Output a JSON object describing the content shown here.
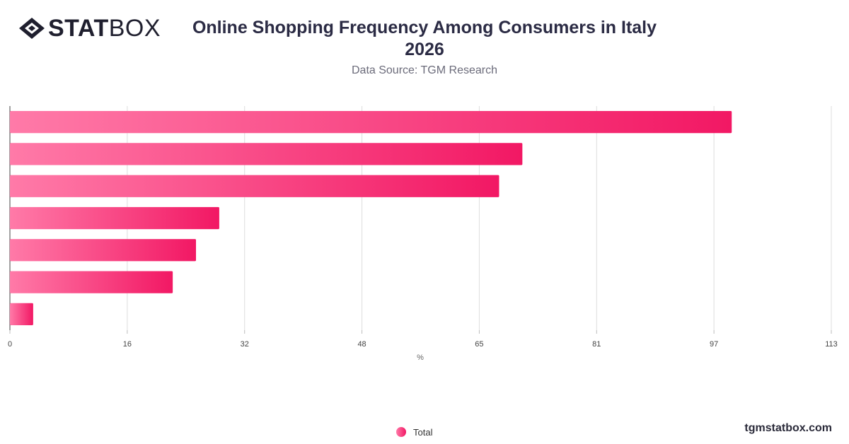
{
  "logo": {
    "bold_text": "STAT",
    "light_text": "BOX",
    "icon": "statbox-diamond-icon"
  },
  "title_line1": "Online Shopping Frequency Among Consumers in Italy",
  "title_line2": "2026",
  "subtitle": "Data Source: TGM Research",
  "watermark": "tgmstatbox.com",
  "colors": {
    "bar_start": "#ff7aa8",
    "bar_end": "#f21864",
    "grid": "#dddddd",
    "text": "#2b2b44"
  },
  "chart_data": {
    "type": "bar",
    "orientation": "horizontal",
    "title": "Online Shopping Frequency Among Consumers in Italy 2026",
    "subtitle": "Data Source: TGM Research",
    "xlabel": "%",
    "xlim": [
      0,
      113
    ],
    "x_ticks": [
      "0",
      "16",
      "32",
      "48",
      "65",
      "81",
      "97",
      "113"
    ],
    "categories": [
      "",
      "",
      "",
      "",
      "",
      "",
      ""
    ],
    "series": [
      {
        "name": "Total",
        "values": [
          99.3,
          70.5,
          67.3,
          28.8,
          25.6,
          22.4,
          3.2
        ]
      }
    ],
    "grid": true,
    "legend_position": "bottom-center"
  }
}
